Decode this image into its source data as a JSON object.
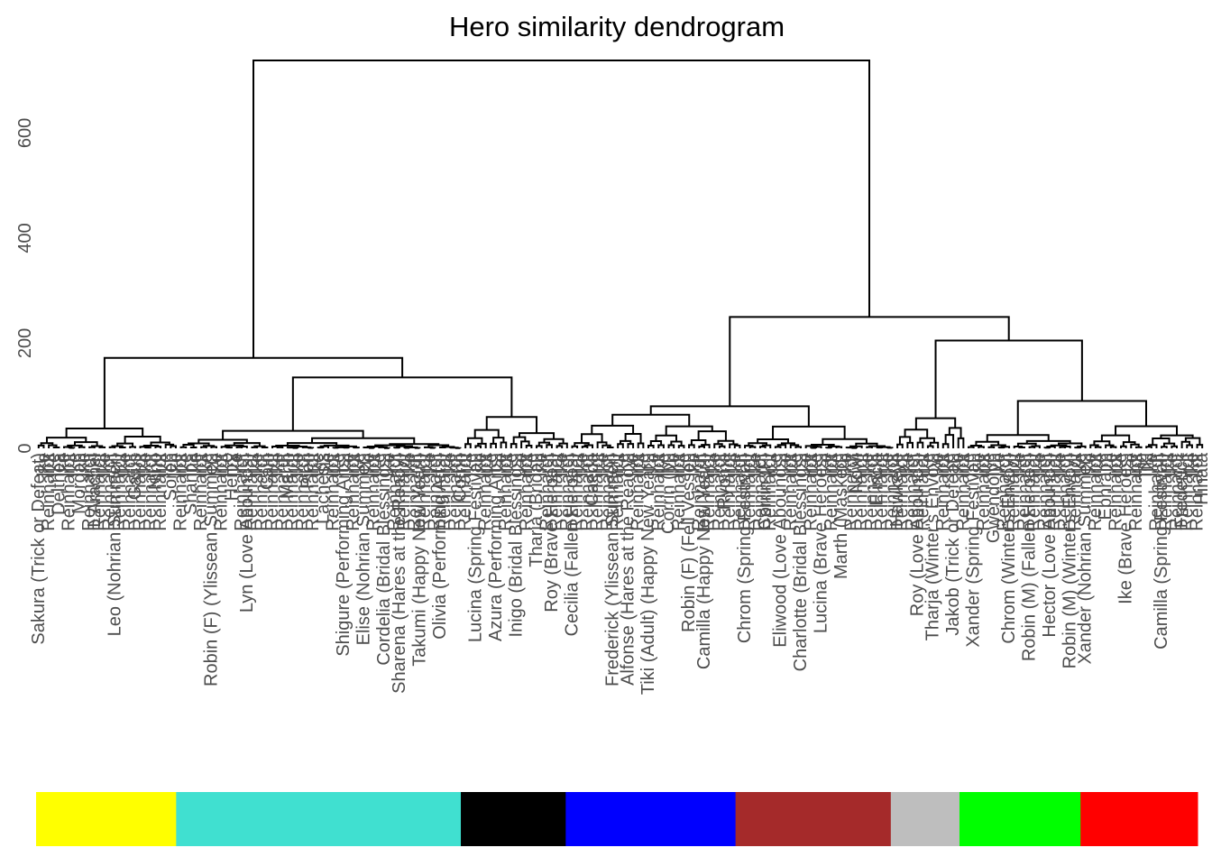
{
  "chart_data": {
    "type": "dendrogram",
    "title": "Hero similarity dendrogram",
    "xlabel": "",
    "ylabel": "",
    "ylim": [
      0,
      780
    ],
    "y_ticks": [
      0,
      200,
      400,
      600
    ],
    "grid": false,
    "root_height": 738,
    "major_merges": [
      {
        "name": "left-cluster",
        "height": 172,
        "children": [
          "yellow-group",
          "turquoise-black-group"
        ]
      },
      {
        "name": "turquoise-black-group",
        "height": 135,
        "children": [
          "turquoise-group",
          "black-group"
        ]
      },
      {
        "name": "right-cluster",
        "height": 250,
        "children": [
          "blue-brown-group",
          "gray-green-red-group"
        ]
      },
      {
        "name": "gray-green-red-group",
        "height": 205,
        "children": [
          "gray-group",
          "green-red-group"
        ]
      },
      {
        "name": "green-red-group",
        "height": 90,
        "children": [
          "green-group",
          "red-group"
        ]
      }
    ],
    "color_bar": [
      {
        "color": "#FFFF00",
        "fraction": 0.1206
      },
      {
        "color": "#40E0D0",
        "fraction": 0.2451
      },
      {
        "color": "#000000",
        "fraction": 0.0903
      },
      {
        "color": "#0000FF",
        "fraction": 0.1462
      },
      {
        "color": "#A52A2A",
        "fraction": 0.1337
      },
      {
        "color": "#BEBEBE",
        "fraction": 0.0591
      },
      {
        "color": "#00FF00",
        "fraction": 0.1042
      },
      {
        "color": "#FF0000",
        "fraction": 0.1008
      }
    ],
    "leaf_labels": [
      "Sakura (Trick or Defeat)",
      "Delthea",
      "Morgan",
      "L'Arachel",
      "Leo (Nohrian Summer)",
      "Gaius",
      "Nino",
      "Soren",
      "Shanna",
      "Robin (F) (Ylissean Summer)",
      "Henry",
      "Lyn (Love Abounds)",
      "Cain",
      "Marth",
      "Pieri",
      "Lachesis",
      "Shigure (Performing Arts)",
      "Elise (Nohrian Summer)",
      "Cordelia (Bridal Blessings)",
      "Sharena (Hares at the Ready)",
      "Takumi (Happy New Year!)",
      "Olivia (Performing Arts)",
      "Corrin",
      "Lucina (Spring Festival)",
      "Azura (Performing Arts)",
      "Inigo (Bridal Blessings)",
      "Tharja (Bridal)",
      "Roy (Brave Heroes)",
      "Cecilia (Fallen Heroes)",
      "Caeda",
      "Frederick (Ylissean Summer)",
      "Alfonse (Hares at the Ready)",
      "Tiki (Adult) (Happy New Year!)",
      "Corrin (M)",
      "Robin (F) (Fell Vessel)",
      "Camilla (Happy New Year!)",
      "Ryoma",
      "Chrom (Spring Festival)",
      "Corrin (F)",
      "Eliwood (Love Abounds)",
      "Charlotte (Bridal Blessings)",
      "Lucina (Brave Heroes)",
      "Marth (Masked)",
      "Nowi",
      "Elincia",
      "Hawkeye",
      "Roy (Love Abounds)",
      "Tharja (Winter's Envoy)",
      "Jakob (Trick or Defeat)",
      "Xander (Spring Festival)",
      "Gwendolyn",
      "Chrom (Winter's Envoy)",
      "Robin (M) (Fallen Heroes)",
      "Hector (Love Abounds)",
      "Robin (M) (Winter's Envoy)",
      "Xander (Nohrian Summer)",
      "Ephraim",
      "Ike (Brave Heroes)",
      "Tiki",
      "Camilla (Spring Festival)",
      "Frederick",
      "Hinata"
    ]
  }
}
